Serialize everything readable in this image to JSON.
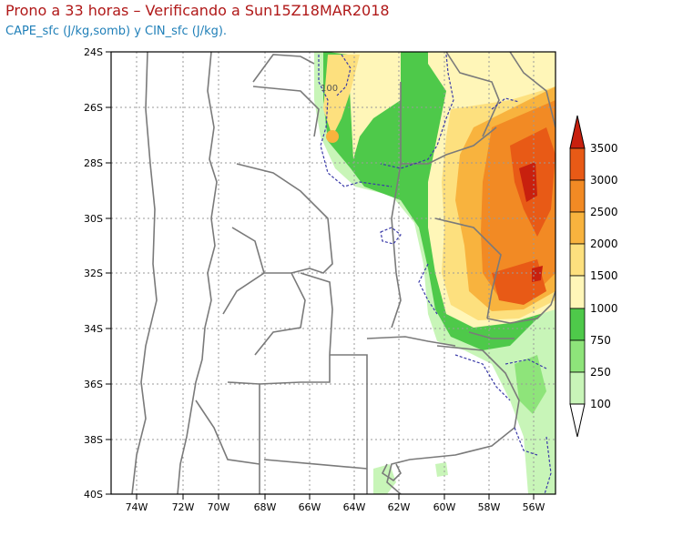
{
  "header": {
    "title": "Prono a 33 horas – Verificando a Sun15Z18MAR2018",
    "subtitle": "CAPE_sfc (J/kg,somb) y CIN_sfc (J/kg)."
  },
  "map": {
    "lat_labels": [
      "24S",
      "26S",
      "28S",
      "30S",
      "32S",
      "34S",
      "36S",
      "38S",
      "40S"
    ],
    "lon_labels": [
      "74W",
      "72W",
      "70W",
      "68W",
      "66W",
      "64W",
      "62W",
      "60W",
      "58W",
      "56W"
    ],
    "contour_label": "100",
    "colors": {
      "c100": "#c8f5b8",
      "c250": "#8ee47a",
      "c750": "#4ec94a",
      "c1000": "#fff6b8",
      "c1500": "#fde07e",
      "c2000": "#f8b33e",
      "c2500": "#f28a24",
      "c3000": "#e85a16",
      "c3500": "#c8200e",
      "border": "#7a7a7a",
      "cin_contour": "#3a3aa8",
      "grid": "#9a9a9a"
    }
  },
  "legend": {
    "levels": [
      "3500",
      "3000",
      "2500",
      "2000",
      "1500",
      "1000",
      "750",
      "250",
      "100"
    ]
  }
}
